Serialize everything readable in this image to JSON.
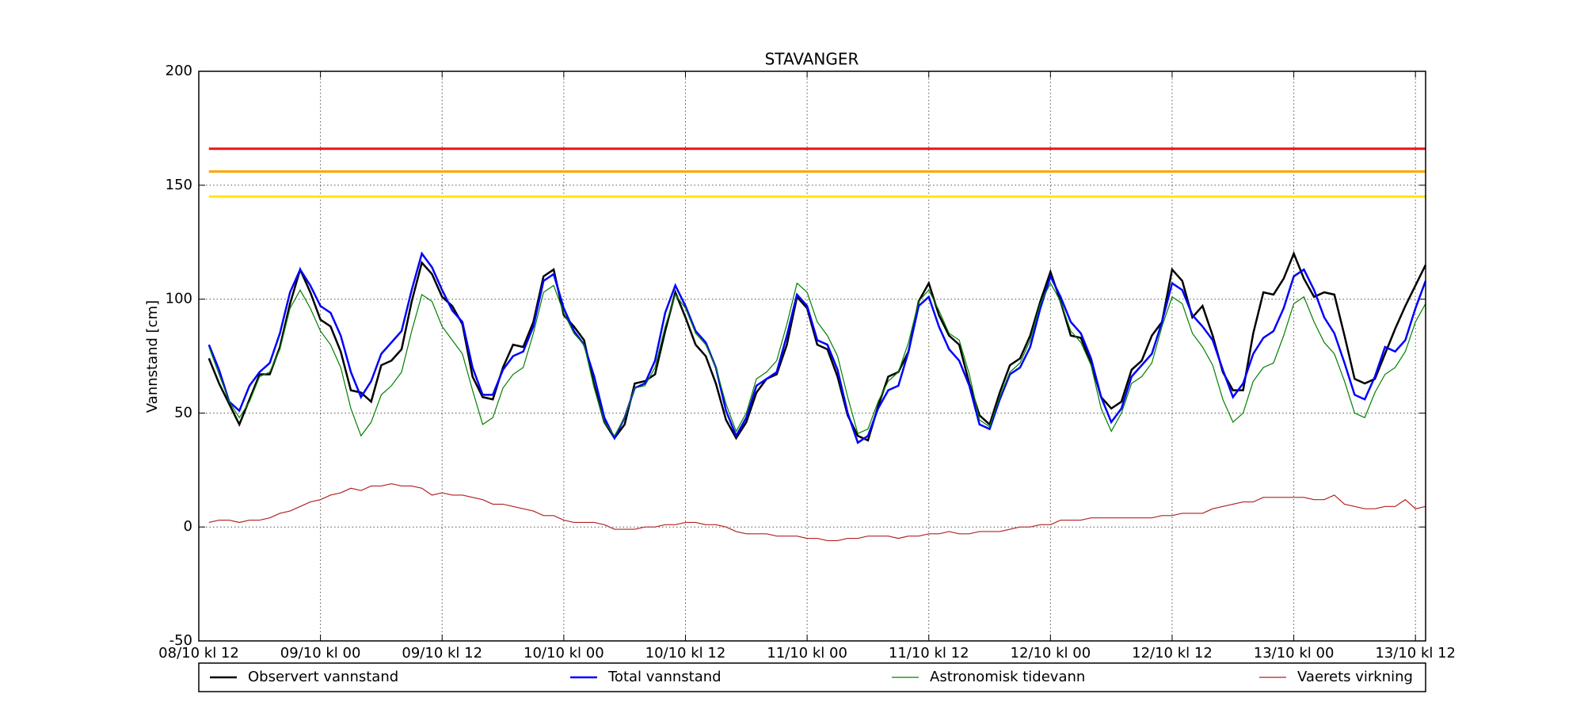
{
  "chart_data": {
    "type": "line",
    "title": "STAVANGER",
    "y_label": "Vannstand [cm]",
    "x": [
      1,
      2,
      3,
      4,
      5,
      6,
      7,
      8,
      9,
      10,
      11,
      12,
      13,
      14,
      15,
      16,
      17,
      18,
      19,
      20,
      21,
      22,
      23,
      24,
      25,
      26,
      27,
      28,
      29,
      30,
      31,
      32,
      33,
      34,
      35,
      36,
      37,
      38,
      39,
      40,
      41,
      42,
      43,
      44,
      45,
      46,
      47,
      48,
      49,
      50,
      51,
      52,
      53,
      54,
      55,
      56,
      57,
      58,
      59,
      60,
      61,
      62,
      63,
      64,
      65,
      66,
      67,
      68,
      69,
      70,
      71,
      72,
      73,
      74,
      75,
      76,
      77,
      78,
      79,
      80,
      81,
      82,
      83,
      84,
      85,
      86,
      87,
      88,
      89,
      90,
      91,
      92,
      93,
      94,
      95,
      96,
      97,
      98,
      99,
      100,
      101,
      102,
      103,
      104,
      105,
      106,
      107,
      108,
      109,
      110,
      111,
      112,
      113,
      114,
      115,
      116,
      117,
      118,
      119,
      120,
      121
    ],
    "xlim": [
      0,
      121
    ],
    "xticks": [
      {
        "value": 0,
        "label": "08/10 kl 12"
      },
      {
        "value": 12,
        "label": "09/10 kl 00"
      },
      {
        "value": 24,
        "label": "09/10 kl 12"
      },
      {
        "value": 36,
        "label": "10/10 kl 00"
      },
      {
        "value": 48,
        "label": "10/10 kl 12"
      },
      {
        "value": 60,
        "label": "11/10 kl 00"
      },
      {
        "value": 72,
        "label": "11/10 kl 12"
      },
      {
        "value": 84,
        "label": "12/10 kl 00"
      },
      {
        "value": 96,
        "label": "12/10 kl 12"
      },
      {
        "value": 108,
        "label": "13/10 kl 00"
      },
      {
        "value": 120,
        "label": "13/10 kl 12"
      }
    ],
    "ylim": [
      -50,
      200
    ],
    "yticks": [
      -50,
      0,
      50,
      100,
      150,
      200
    ],
    "grid": true,
    "legend": "below",
    "reference_lines": [
      {
        "value": 166,
        "color": "#e8141c"
      },
      {
        "value": 156,
        "color": "#ffa500"
      },
      {
        "value": 145,
        "color": "#ffe600"
      }
    ],
    "series": [
      {
        "name": "Observert vannstand",
        "color": "#000000",
        "width": 2.5,
        "values": [
          74,
          63,
          54,
          45,
          56,
          67,
          67,
          79,
          98,
          113,
          103,
          91,
          88,
          77,
          60,
          59,
          55,
          71,
          73,
          78,
          99,
          116,
          111,
          101,
          97,
          89,
          66,
          57,
          56,
          70,
          80,
          79,
          90,
          110,
          113,
          93,
          88,
          82,
          62,
          46,
          39,
          45,
          63,
          64,
          67,
          86,
          103,
          92,
          80,
          75,
          63,
          47,
          39,
          46,
          59,
          65,
          67,
          80,
          101,
          96,
          80,
          78,
          66,
          49,
          40,
          38,
          53,
          66,
          68,
          77,
          99,
          107,
          93,
          84,
          80,
          63,
          49,
          45,
          59,
          71,
          74,
          84,
          99,
          112,
          99,
          84,
          83,
          72,
          57,
          52,
          55,
          69,
          73,
          84,
          90,
          113,
          108,
          92,
          97,
          84,
          68,
          60,
          60,
          85,
          103,
          102,
          109,
          120,
          109,
          101,
          103,
          102,
          84,
          65,
          63,
          65,
          76,
          87,
          97,
          106,
          115
        ]
      },
      {
        "name": "Total vannstand",
        "color": "#0000ff",
        "width": 2.5,
        "values": [
          80,
          69,
          55,
          51,
          62,
          68,
          72,
          85,
          103,
          113,
          106,
          97,
          94,
          84,
          68,
          57,
          64,
          76,
          81,
          86,
          104,
          120,
          114,
          104,
          95,
          90,
          70,
          58,
          58,
          69,
          75,
          77,
          88,
          108,
          111,
          96,
          86,
          80,
          66,
          48,
          39,
          48,
          61,
          63,
          73,
          94,
          106,
          97,
          86,
          81,
          70,
          51,
          40,
          48,
          62,
          65,
          68,
          84,
          102,
          97,
          82,
          80,
          69,
          50,
          37,
          40,
          52,
          60,
          62,
          77,
          97,
          101,
          88,
          78,
          73,
          62,
          45,
          43,
          56,
          67,
          70,
          79,
          96,
          110,
          101,
          90,
          85,
          74,
          57,
          46,
          52,
          66,
          71,
          76,
          90,
          107,
          104,
          93,
          88,
          82,
          69,
          57,
          63,
          76,
          83,
          86,
          96,
          110,
          113,
          104,
          92,
          85,
          72,
          58,
          56,
          66,
          79,
          77,
          82,
          96,
          108
        ]
      },
      {
        "name": "Astronomisk tidevann",
        "color": "#008000",
        "width": 1.2,
        "values": [
          79,
          67,
          55,
          48,
          55,
          66,
          68,
          78,
          96,
          104,
          96,
          86,
          80,
          70,
          52,
          40,
          46,
          58,
          62,
          68,
          86,
          102,
          99,
          88,
          82,
          76,
          60,
          45,
          48,
          61,
          67,
          70,
          85,
          103,
          106,
          94,
          85,
          80,
          61,
          46,
          40,
          48,
          61,
          62,
          70,
          88,
          102,
          96,
          85,
          80,
          70,
          54,
          42,
          50,
          65,
          68,
          73,
          89,
          107,
          103,
          90,
          84,
          75,
          57,
          41,
          43,
          55,
          64,
          68,
          81,
          99,
          104,
          95,
          85,
          82,
          67,
          47,
          44,
          57,
          68,
          72,
          82,
          98,
          107,
          99,
          86,
          81,
          71,
          52,
          42,
          50,
          63,
          66,
          72,
          88,
          101,
          98,
          85,
          79,
          71,
          56,
          46,
          50,
          64,
          70,
          72,
          84,
          98,
          101,
          90,
          81,
          76,
          64,
          50,
          48,
          59,
          67,
          70,
          77,
          90,
          98
        ]
      },
      {
        "name": "Vaerets virkning",
        "color": "#b22222",
        "width": 1.2,
        "values": [
          2,
          3,
          3,
          2,
          3,
          3,
          4,
          6,
          7,
          9,
          11,
          12,
          14,
          15,
          17,
          16,
          18,
          18,
          19,
          18,
          18,
          17,
          14,
          15,
          14,
          14,
          13,
          12,
          10,
          10,
          9,
          8,
          7,
          5,
          5,
          3,
          2,
          2,
          2,
          1,
          -1,
          -1,
          -1,
          0,
          0,
          1,
          1,
          2,
          2,
          1,
          1,
          0,
          -2,
          -3,
          -3,
          -3,
          -4,
          -4,
          -4,
          -5,
          -5,
          -6,
          -6,
          -5,
          -5,
          -4,
          -4,
          -4,
          -5,
          -4,
          -4,
          -3,
          -3,
          -2,
          -3,
          -3,
          -2,
          -2,
          -2,
          -1,
          0,
          0,
          1,
          1,
          3,
          3,
          3,
          4,
          4,
          4,
          4,
          4,
          4,
          4,
          5,
          5,
          6,
          6,
          6,
          8,
          9,
          10,
          11,
          11,
          13,
          13,
          13,
          13,
          13,
          12,
          12,
          14,
          10,
          9,
          8,
          8,
          9,
          9,
          12,
          8,
          9
        ]
      }
    ]
  }
}
